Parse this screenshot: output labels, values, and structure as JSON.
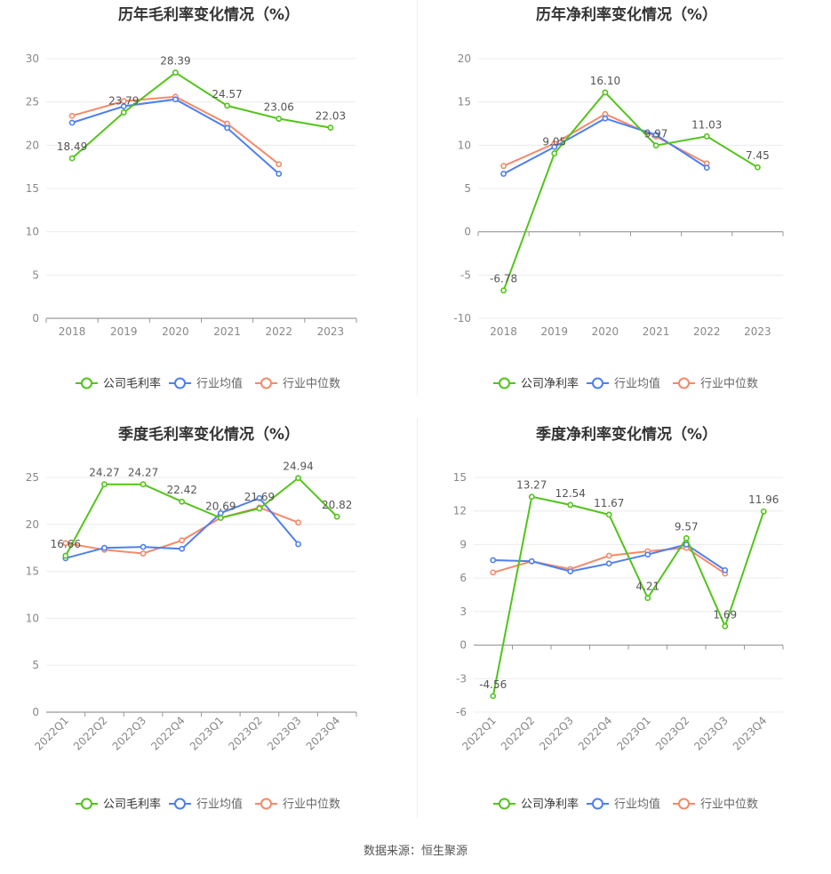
{
  "source_label": "数据来源：恒生聚源",
  "colors": {
    "company": "#52c41a",
    "industry_avg": "#4e7ff0",
    "industry_median": "#f58a6a",
    "axis": "#888888",
    "grid": "#ececec",
    "label": "#555555"
  },
  "chart_data": [
    {
      "type": "line",
      "title": "历年毛利率变化情况（%）",
      "categories": [
        "2018",
        "2019",
        "2020",
        "2021",
        "2022",
        "2023"
      ],
      "ylim": [
        0,
        30
      ],
      "yticks": [
        0,
        5,
        10,
        15,
        20,
        25,
        30
      ],
      "grid": true,
      "legend_position": "bottom",
      "series": [
        {
          "name": "公司毛利率",
          "values": [
            18.49,
            23.79,
            28.39,
            24.57,
            23.06,
            22.03
          ],
          "labels": [
            "18.49",
            "23.79",
            "28.39",
            "24.57",
            "23.06",
            "22.03"
          ]
        },
        {
          "name": "行业均值",
          "values": [
            22.6,
            24.5,
            25.3,
            22.0,
            16.7,
            null
          ]
        },
        {
          "name": "行业中位数",
          "values": [
            23.4,
            25.1,
            25.6,
            22.5,
            17.8,
            null
          ]
        }
      ]
    },
    {
      "type": "line",
      "title": "历年净利率变化情况（%）",
      "categories": [
        "2018",
        "2019",
        "2020",
        "2021",
        "2022",
        "2023"
      ],
      "ylim": [
        -10,
        20
      ],
      "yticks": [
        -10,
        -5,
        0,
        5,
        10,
        15,
        20
      ],
      "grid": true,
      "legend_position": "bottom",
      "series": [
        {
          "name": "公司净利率",
          "values": [
            -6.78,
            9.05,
            16.1,
            9.97,
            11.03,
            7.45
          ],
          "labels": [
            "-6.78",
            "9.05",
            "16.10",
            "9.97",
            "11.03",
            "7.45"
          ]
        },
        {
          "name": "行业均值",
          "values": [
            6.7,
            9.8,
            13.1,
            11.2,
            7.4,
            null
          ]
        },
        {
          "name": "行业中位数",
          "values": [
            7.6,
            10.2,
            13.6,
            11.0,
            7.9,
            null
          ]
        }
      ]
    },
    {
      "type": "line",
      "title": "季度毛利率变化情况（%）",
      "categories": [
        "2022Q1",
        "2022Q2",
        "2022Q3",
        "2022Q4",
        "2023Q1",
        "2023Q2",
        "2023Q3",
        "2023Q4"
      ],
      "ylim": [
        0,
        25
      ],
      "yticks": [
        0,
        5,
        10,
        15,
        20,
        25
      ],
      "grid": true,
      "legend_position": "bottom",
      "series": [
        {
          "name": "公司毛利率",
          "values": [
            16.66,
            24.27,
            24.27,
            22.42,
            20.69,
            21.69,
            24.94,
            20.82
          ],
          "labels": [
            "16.66",
            "24.27",
            "24.27",
            "22.42",
            "20.69",
            "21.69",
            "24.94",
            "20.82"
          ]
        },
        {
          "name": "行业均值",
          "values": [
            16.4,
            17.5,
            17.6,
            17.4,
            21.2,
            22.8,
            17.9,
            null
          ]
        },
        {
          "name": "行业中位数",
          "values": [
            18.0,
            17.3,
            16.9,
            18.3,
            20.7,
            21.8,
            20.2,
            null
          ]
        }
      ]
    },
    {
      "type": "line",
      "title": "季度净利率变化情况（%）",
      "categories": [
        "2022Q1",
        "2022Q2",
        "2022Q3",
        "2022Q4",
        "2023Q1",
        "2023Q2",
        "2023Q3",
        "2023Q4"
      ],
      "ylim": [
        -6,
        15
      ],
      "yticks": [
        -6,
        -3,
        0,
        3,
        6,
        9,
        12,
        15
      ],
      "grid": true,
      "legend_position": "bottom",
      "series": [
        {
          "name": "公司净利率",
          "values": [
            -4.56,
            13.27,
            12.54,
            11.67,
            4.21,
            9.57,
            1.69,
            11.96
          ],
          "labels": [
            "-4.56",
            "13.27",
            "12.54",
            "11.67",
            "4.21",
            "9.57",
            "1.69",
            "11.96"
          ]
        },
        {
          "name": "行业均值",
          "values": [
            7.6,
            7.5,
            6.6,
            7.3,
            8.1,
            9.0,
            6.7,
            null
          ]
        },
        {
          "name": "行业中位数",
          "values": [
            6.5,
            7.5,
            6.8,
            8.0,
            8.4,
            8.7,
            6.4,
            null
          ]
        }
      ]
    }
  ]
}
